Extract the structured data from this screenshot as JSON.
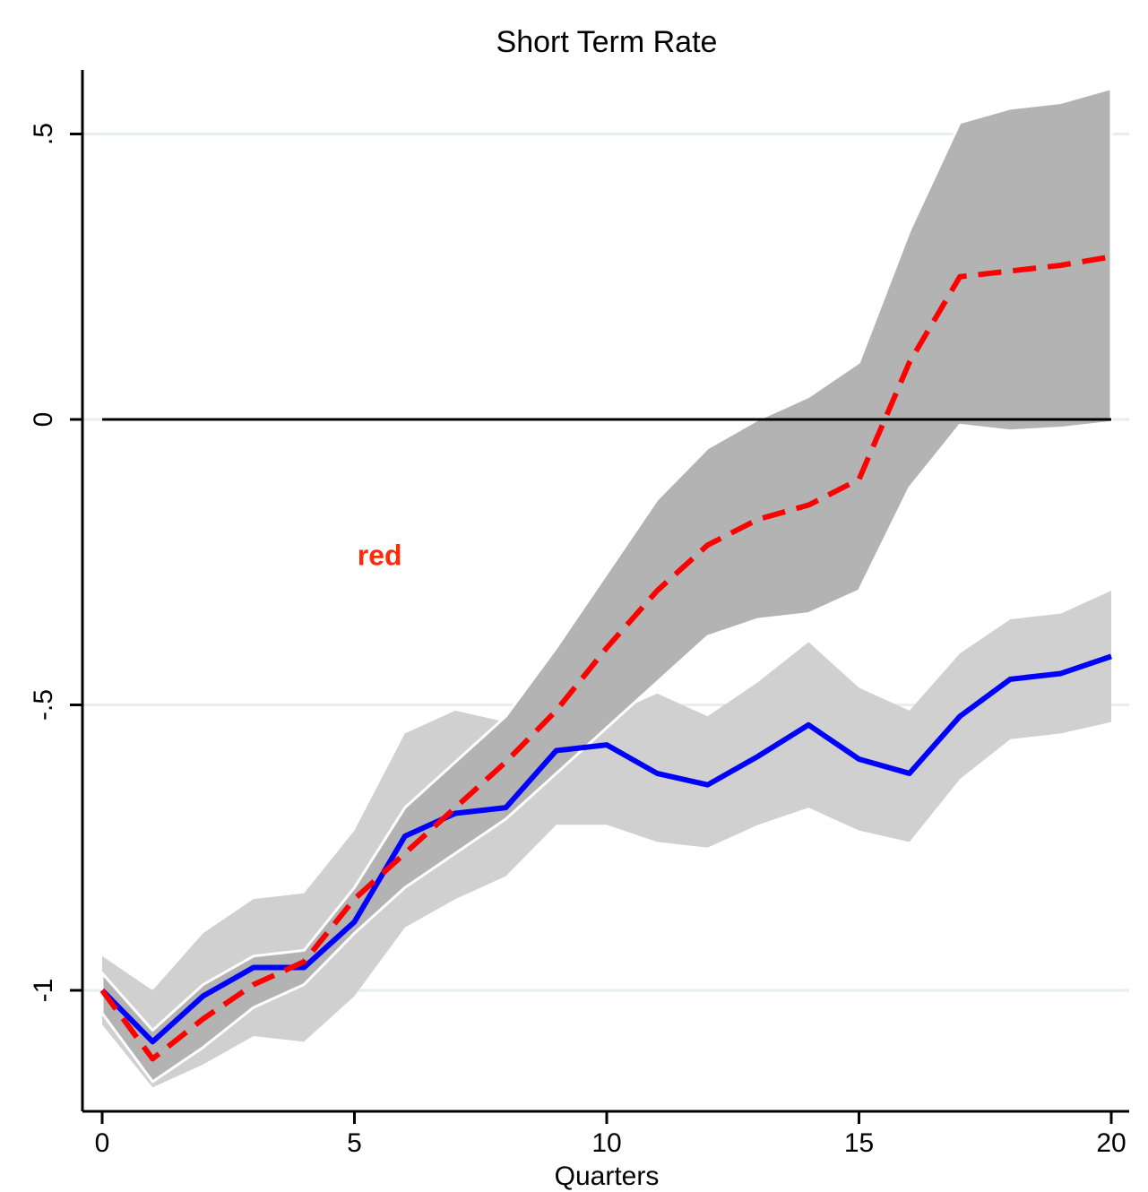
{
  "chart_data": {
    "type": "area",
    "title": "Short Term Rate",
    "xlabel": "Quarters",
    "ylabel": "",
    "xlim": [
      0,
      20
    ],
    "ylim": [
      -1.2,
      0.6
    ],
    "x_ticks": [
      0,
      5,
      10,
      15,
      20
    ],
    "x_tick_labels": [
      "0",
      "5",
      "10",
      "15",
      "20"
    ],
    "y_ticks": [
      -1,
      -0.5,
      0,
      0.5
    ],
    "y_tick_labels": [
      "-1",
      "-.5",
      "0",
      ".5"
    ],
    "grid": true,
    "x": [
      0,
      1,
      2,
      3,
      4,
      5,
      6,
      7,
      8,
      9,
      10,
      11,
      12,
      13,
      14,
      15,
      16,
      17,
      18,
      19,
      20
    ],
    "bands": [
      {
        "color": "#d0d0d0",
        "lower": [
          -1.06,
          -1.17,
          -1.13,
          -1.08,
          -1.09,
          -1.01,
          -0.89,
          -0.84,
          -0.8,
          -0.71,
          -0.71,
          -0.74,
          -0.75,
          -0.71,
          -0.68,
          -0.72,
          -0.74,
          -0.63,
          -0.56,
          -0.55,
          -0.53
        ],
        "upper": [
          -0.94,
          -1.0,
          -0.9,
          -0.84,
          -0.83,
          -0.72,
          -0.55,
          -0.51,
          -0.53,
          -0.56,
          -0.52,
          -0.48,
          -0.52,
          -0.46,
          -0.39,
          -0.47,
          -0.51,
          -0.41,
          -0.35,
          -0.34,
          -0.3
        ]
      },
      {
        "color": "#b3b3b3",
        "lower": [
          -1.04,
          -1.16,
          -1.1,
          -1.03,
          -0.99,
          -0.9,
          -0.82,
          -0.76,
          -0.7,
          -0.62,
          -0.54,
          -0.46,
          -0.38,
          -0.35,
          -0.34,
          -0.3,
          -0.12,
          -0.01,
          -0.02,
          -0.015,
          -0.005
        ],
        "upper": [
          -0.97,
          -1.07,
          -0.99,
          -0.94,
          -0.93,
          -0.82,
          -0.68,
          -0.6,
          -0.52,
          -0.4,
          -0.27,
          -0.14,
          -0.05,
          0.0,
          0.04,
          0.1,
          0.33,
          0.52,
          0.545,
          0.555,
          0.58
        ]
      }
    ],
    "series": [
      {
        "color": "#0000ff",
        "style": "solid",
        "values": [
          -1.0,
          -1.09,
          -1.01,
          -0.96,
          -0.96,
          -0.88,
          -0.73,
          -0.69,
          -0.68,
          -0.58,
          -0.57,
          -0.62,
          -0.64,
          -0.59,
          -0.535,
          -0.595,
          -0.62,
          -0.52,
          -0.455,
          -0.445,
          -0.415
        ]
      },
      {
        "color": "#ff0000",
        "style": "dashed",
        "values": [
          -1.0,
          -1.12,
          -1.05,
          -0.99,
          -0.95,
          -0.84,
          -0.76,
          -0.68,
          -0.6,
          -0.51,
          -0.4,
          -0.3,
          -0.22,
          -0.175,
          -0.15,
          -0.105,
          0.1,
          0.25,
          0.26,
          0.27,
          0.285
        ]
      }
    ],
    "reference_line": {
      "y": 0,
      "color": "#000000"
    },
    "annotations": [
      {
        "text": "red",
        "x": 5.5,
        "y": -0.255,
        "color": "#ff2a0a"
      }
    ]
  }
}
